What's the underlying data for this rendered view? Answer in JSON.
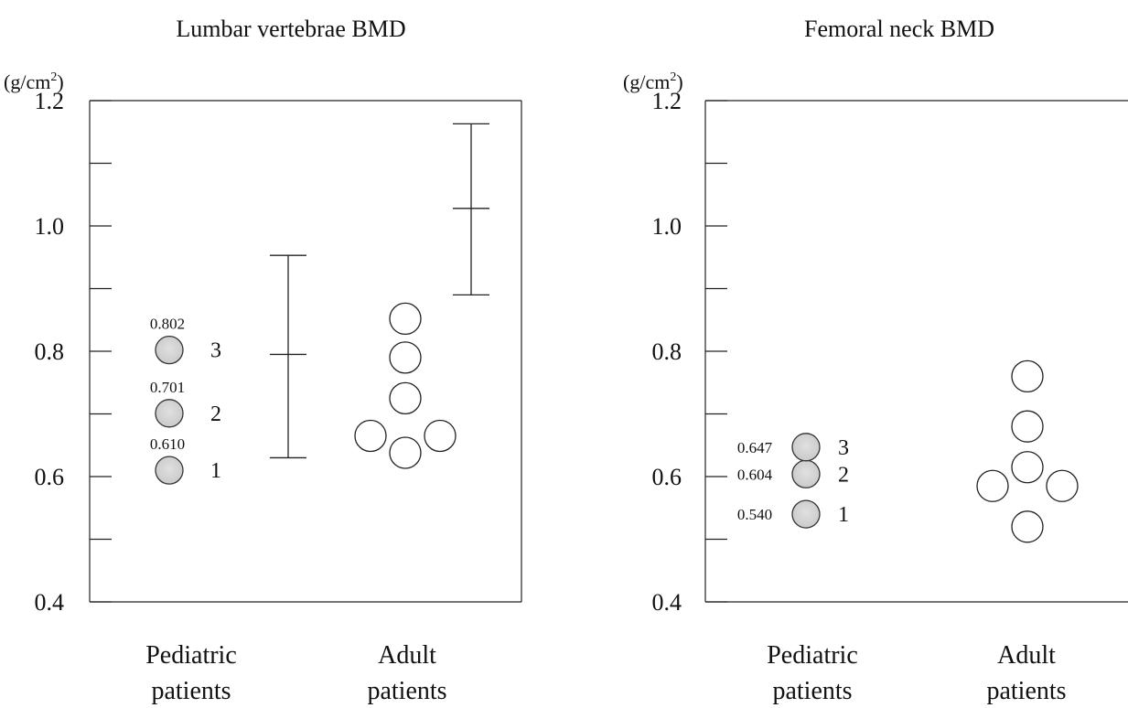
{
  "chart_data": [
    {
      "type": "scatter",
      "title": "Lumbar vertebrae BMD",
      "ylabel_unit_base": "(g/cm",
      "ylabel_unit_sup": "2",
      "ylabel_unit_end": ")",
      "ylim": [
        0.4,
        1.2
      ],
      "yticks": [
        0.4,
        0.6,
        0.8,
        1.0,
        1.2
      ],
      "ytick_labels": [
        "0.4",
        "0.6",
        "0.8",
        "1.0",
        "1.2"
      ],
      "minor_ticks": [
        0.5,
        0.7,
        0.9,
        1.1
      ],
      "categories": [
        {
          "line1": "Pediatric",
          "line2": "patients"
        },
        {
          "line1": "Adult",
          "line2": "patients"
        }
      ],
      "pediatric_points": [
        {
          "y": 0.61,
          "label": "0.610",
          "rank": "1"
        },
        {
          "y": 0.701,
          "label": "0.701",
          "rank": "2"
        },
        {
          "y": 0.802,
          "label": "0.802",
          "rank": "3"
        }
      ],
      "adult_points": [
        {
          "y": 0.852,
          "offset": 0
        },
        {
          "y": 0.79,
          "offset": 0
        },
        {
          "y": 0.725,
          "offset": 0
        },
        {
          "y": 0.665,
          "offset": -1
        },
        {
          "y": 0.665,
          "offset": 1
        },
        {
          "y": 0.638,
          "offset": 0
        }
      ],
      "error_bars": [
        {
          "series": "pediatric_reference",
          "mean": 0.795,
          "low": 0.63,
          "high": 0.953
        },
        {
          "series": "adult_reference",
          "mean": 1.028,
          "low": 0.89,
          "high": 1.163
        }
      ],
      "marker_colors": {
        "pediatric": "#c8c8c8",
        "adult": "#ffffff"
      }
    },
    {
      "type": "scatter",
      "title": "Femoral neck BMD",
      "ylabel_unit_base": "(g/cm",
      "ylabel_unit_sup": "2",
      "ylabel_unit_end": ")",
      "ylim": [
        0.4,
        1.2
      ],
      "yticks": [
        0.4,
        0.6,
        0.8,
        1.0,
        1.2
      ],
      "ytick_labels": [
        "0.4",
        "0.6",
        "0.8",
        "1.0",
        "1.2"
      ],
      "minor_ticks": [
        0.5,
        0.7,
        0.9,
        1.1
      ],
      "categories": [
        {
          "line1": "Pediatric",
          "line2": "patients"
        },
        {
          "line1": "Adult",
          "line2": "patients"
        }
      ],
      "pediatric_points": [
        {
          "y": 0.54,
          "label": "0.540",
          "rank": "1"
        },
        {
          "y": 0.604,
          "label": "0.604",
          "rank": "2"
        },
        {
          "y": 0.647,
          "label": "0.647",
          "rank": "3"
        }
      ],
      "adult_points": [
        {
          "y": 0.76,
          "offset": 0
        },
        {
          "y": 0.68,
          "offset": 0
        },
        {
          "y": 0.615,
          "offset": 0
        },
        {
          "y": 0.585,
          "offset": -1
        },
        {
          "y": 0.585,
          "offset": 1
        },
        {
          "y": 0.52,
          "offset": 0
        }
      ],
      "error_bars": [],
      "marker_colors": {
        "pediatric": "#c8c8c8",
        "adult": "#ffffff"
      }
    }
  ]
}
